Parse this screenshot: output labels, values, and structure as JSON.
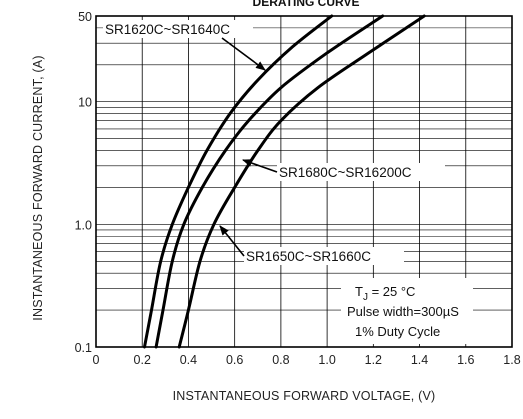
{
  "chart_data": {
    "type": "line",
    "title": "DERATING CURVE",
    "xlabel": "INSTANTANEOUS FORWARD VOLTAGE, (V)",
    "ylabel": "INSTANTANEOUS FORWARD CURRENT, (A)",
    "xlim": [
      0,
      1.8
    ],
    "ylim": [
      0.1,
      50
    ],
    "y_scale": "log",
    "grid": true,
    "x_ticks": [
      "0",
      "0.2",
      "0.4",
      "0.6",
      "0.8",
      "1.0",
      "1.2",
      "1.4",
      "1.6",
      "1.8"
    ],
    "y_ticks": [
      "0.1",
      "1.0",
      "10",
      "50"
    ],
    "series": [
      {
        "name": "SR1620C~SR1640C",
        "x": [
          0.21,
          0.24,
          0.28,
          0.33,
          0.4,
          0.48,
          0.58,
          0.7,
          0.85,
          1.02
        ],
        "y": [
          0.1,
          0.2,
          0.5,
          1.0,
          2.0,
          4.0,
          8.0,
          15,
          28,
          50
        ]
      },
      {
        "name": "SR1650C~SR1660C",
        "x": [
          0.26,
          0.29,
          0.33,
          0.38,
          0.46,
          0.56,
          0.66,
          0.8,
          1.0,
          1.24
        ],
        "y": [
          0.1,
          0.2,
          0.5,
          1.0,
          2.0,
          4.0,
          7.0,
          13,
          25,
          50
        ]
      },
      {
        "name": "SR1680C~SR16200C",
        "x": [
          0.36,
          0.4,
          0.45,
          0.51,
          0.6,
          0.7,
          0.8,
          0.96,
          1.18,
          1.42
        ],
        "y": [
          0.1,
          0.2,
          0.5,
          1.0,
          2.0,
          4.0,
          7.0,
          13,
          25,
          50
        ]
      }
    ],
    "conditions": [
      "T J = 25 °C",
      "Pulse width=300µS",
      "1% Duty Cycle"
    ],
    "annotations": [
      "SR1620C~SR1640C",
      "SR1680C~SR16200C",
      "SR1650C~SR1660C"
    ]
  }
}
